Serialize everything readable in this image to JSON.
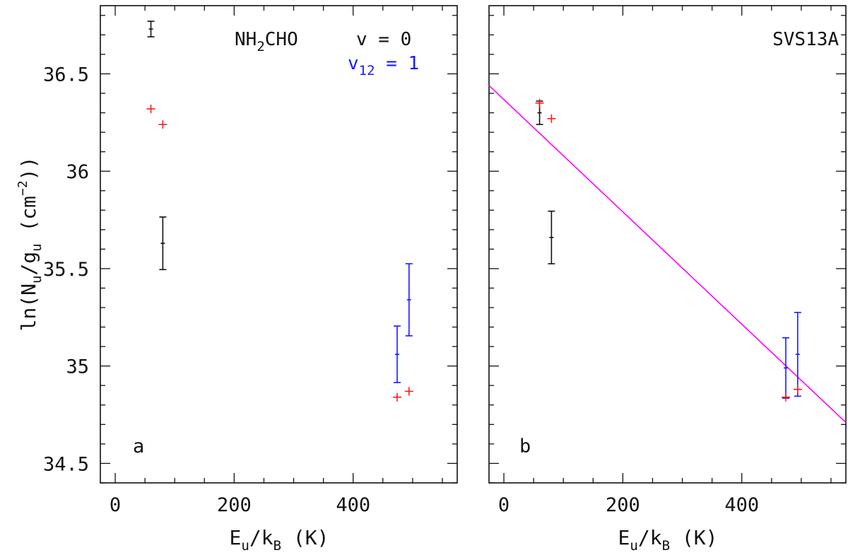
{
  "colors": {
    "v0": "#111111",
    "v12": "#1a1aff",
    "model": "#ff1a1a",
    "fit": "#ff00ff"
  },
  "chart_data": [
    {
      "type": "scatter",
      "panel_label": "a",
      "annotation": {
        "molecule": "NH",
        "molecule_sub": "2",
        "molecule_tail": "CHO",
        "state_v0": "v = 0",
        "state_v12": "v",
        "state_v12_sub": "12",
        "state_v12_tail": " = 1"
      },
      "xlabel": {
        "main": "E",
        "sub1": "u",
        "mid": "/k",
        "sub2": "B",
        "tail": " (K)"
      },
      "ylabel": {
        "pre": "ln(N",
        "sub1": "u",
        "mid": "/g",
        "sub2": "u",
        "unit": " (cm",
        "sup": "−2",
        "tail": "))"
      },
      "xlim": [
        -25,
        575
      ],
      "ylim": [
        34.4,
        36.85
      ],
      "xticks": [
        0,
        200,
        400
      ],
      "xtick_labels": [
        "0",
        "200",
        "400"
      ],
      "yticks": [
        34.5,
        35,
        35.5,
        36,
        36.5
      ],
      "ytick_labels": [
        "34.5",
        "35",
        "35.5",
        "36",
        "36.5"
      ],
      "series": [
        {
          "name": "v = 0",
          "color_key": "v0",
          "style": "errorbar",
          "points": [
            {
              "x": 60,
              "y": 36.73,
              "err": 0.04
            },
            {
              "x": 80,
              "y": 35.63,
              "err": 0.135
            }
          ]
        },
        {
          "name": "v12 = 1",
          "color_key": "v12",
          "style": "errorbar",
          "points": [
            {
              "x": 474,
              "y": 35.06,
              "err": 0.145
            },
            {
              "x": 494,
              "y": 35.34,
              "err": 0.185
            }
          ]
        },
        {
          "name": "model",
          "color_key": "model",
          "style": "cross",
          "points": [
            {
              "x": 60,
              "y": 36.32
            },
            {
              "x": 80,
              "y": 36.24
            },
            {
              "x": 474,
              "y": 34.84
            },
            {
              "x": 494,
              "y": 34.87
            }
          ]
        }
      ]
    },
    {
      "type": "scatter",
      "panel_label": "b",
      "annotation": {
        "source": "SVS13A"
      },
      "xlabel": {
        "main": "E",
        "sub1": "u",
        "mid": "/k",
        "sub2": "B",
        "tail": " (K)"
      },
      "xlim": [
        -25,
        575
      ],
      "ylim": [
        34.4,
        36.85
      ],
      "xticks": [
        0,
        200,
        400
      ],
      "xtick_labels": [
        "0",
        "200",
        "400"
      ],
      "yticks": [
        34.5,
        35,
        35.5,
        36,
        36.5
      ],
      "series": [
        {
          "name": "v = 0",
          "color_key": "v0",
          "style": "errorbar",
          "points": [
            {
              "x": 60,
              "y": 36.3,
              "err": 0.06
            },
            {
              "x": 80,
              "y": 35.66,
              "err": 0.135
            }
          ]
        },
        {
          "name": "v12 = 1",
          "color_key": "v12",
          "style": "errorbar",
          "points": [
            {
              "x": 474,
              "y": 34.99,
              "err": 0.155
            },
            {
              "x": 494,
              "y": 35.06,
              "err": 0.215
            }
          ]
        },
        {
          "name": "model",
          "color_key": "model",
          "style": "cross",
          "points": [
            {
              "x": 60,
              "y": 36.35
            },
            {
              "x": 80,
              "y": 36.27
            },
            {
              "x": 474,
              "y": 34.84
            },
            {
              "x": 494,
              "y": 34.88
            }
          ]
        }
      ],
      "fit_line": {
        "color_key": "fit",
        "x": [
          -25,
          575
        ],
        "y": [
          36.44,
          34.71
        ]
      }
    }
  ]
}
